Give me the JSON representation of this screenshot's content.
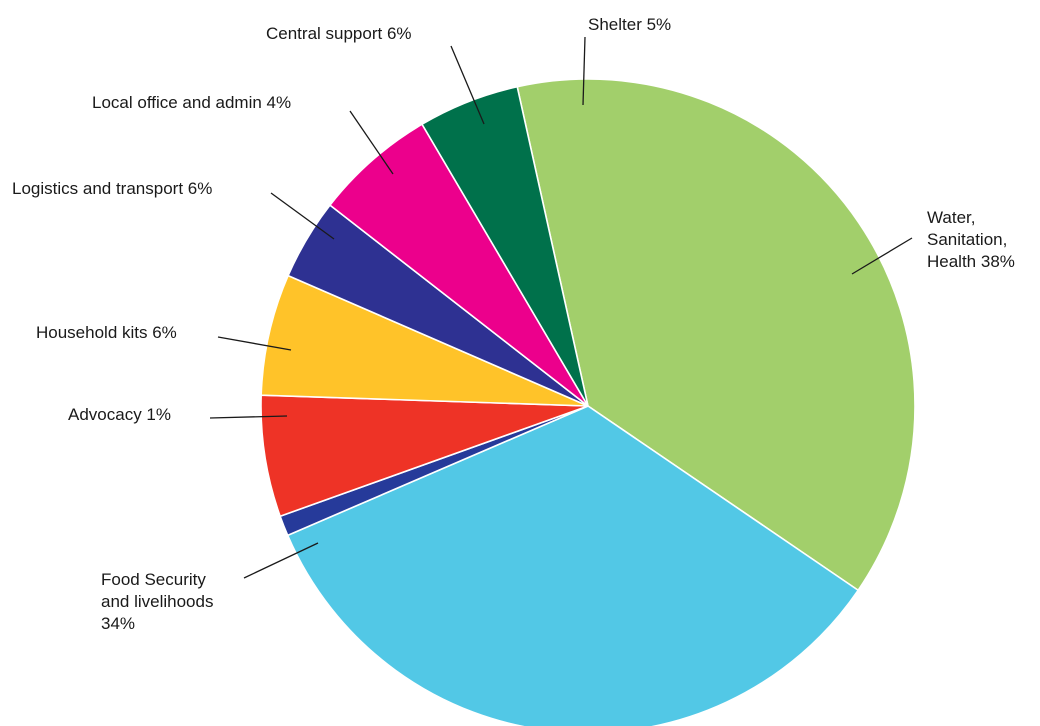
{
  "chart_data": {
    "type": "pie",
    "title": "",
    "slices": [
      {
        "label": "Water, Sanitation, Health",
        "value": 38,
        "color": "#A2CF6B",
        "label_lines": [
          "Water,",
          "Sanitation,",
          "Health 38%"
        ]
      },
      {
        "label": "Food Security and livelihoods",
        "value": 34,
        "color": "#52C8E6",
        "label_lines": [
          "Food Security",
          "and livelihoods",
          "34%"
        ]
      },
      {
        "label": "Advocacy",
        "value": 1,
        "color": "#263A9A",
        "label_lines": [
          "Advocacy 1%"
        ]
      },
      {
        "label": "Household kits",
        "value": 6,
        "color": "#EE3326",
        "label_lines": [
          "Household kits 6%"
        ]
      },
      {
        "label": "Logistics and transport",
        "value": 6,
        "color": "#FFC329",
        "label_lines": [
          "Logistics and transport 6%"
        ]
      },
      {
        "label": "Local office and admin",
        "value": 4,
        "color": "#2E3192",
        "label_lines": [
          "Local office and admin 4%"
        ]
      },
      {
        "label": "Central support",
        "value": 6,
        "color": "#EC008C",
        "label_lines": [
          "Central support 6%"
        ]
      },
      {
        "label": "Shelter",
        "value": 5,
        "color": "#00714B",
        "label_lines": [
          "Shelter 5%"
        ]
      }
    ]
  }
}
